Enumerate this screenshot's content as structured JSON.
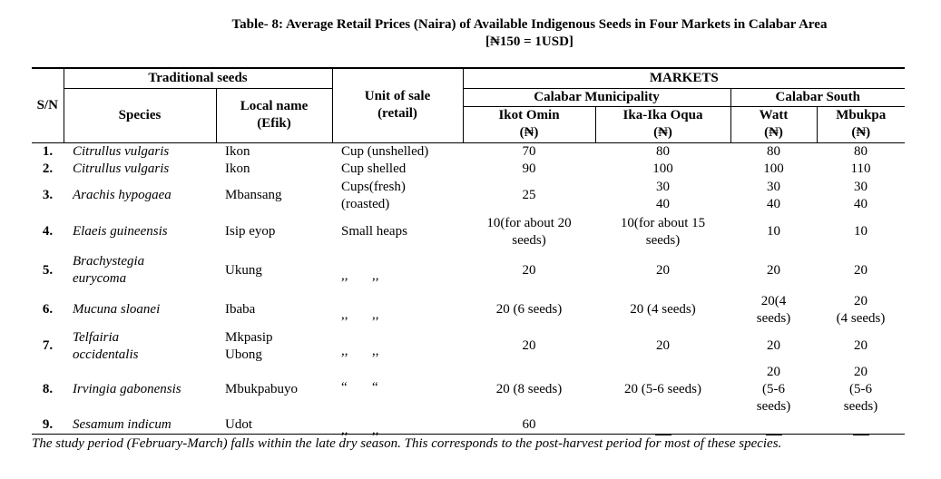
{
  "title": "Table- 8: Average Retail Prices (Naira) of Available Indigenous Seeds in Four Markets in Calabar Area",
  "subtitle": "[₦150 = 1USD]",
  "headers": {
    "sn": "S/N",
    "traditional": "Traditional seeds",
    "species": "Species",
    "local1": "Local name",
    "local2": "(Efik)",
    "unit1": "Unit of sale",
    "unit2": "(retail)",
    "markets": "MARKETS",
    "municipality": "Calabar Municipality",
    "south": "Calabar South",
    "m1": "Ikot Omin",
    "m2": "Ika-Ika Oqua",
    "m3": "Watt",
    "m4": "Mbukpa",
    "currency": "(₦)"
  },
  "rows": [
    {
      "sn": "1.",
      "species": "Citrullus vulgaris",
      "local": "Ikon",
      "unit": "Cup (unshelled)",
      "m1": "70",
      "m2": "80",
      "m3": "80",
      "m4": "80"
    },
    {
      "sn": "2.",
      "species": "Citrullus vulgaris",
      "local": "Ikon",
      "unit": "Cup shelled",
      "m1": "90",
      "m2": "100",
      "m3": "100",
      "m4": "110"
    },
    {
      "sn": "3.",
      "species": "Arachis hypogaea",
      "local": "Mbansang",
      "unit_a": "Cups(fresh)",
      "unit_b": "(roasted)",
      "m1": "25",
      "m2a": "30",
      "m2b": "40",
      "m3a": "30",
      "m3b": "40",
      "m4a": "30",
      "m4b": "40"
    },
    {
      "sn": "4.",
      "species": "Elaeis guineensis",
      "local": "Isip eyop",
      "unit": "Small heaps",
      "m1a": "10(for about 20",
      "m1b": "seeds)",
      "m2a": "10(for about 15",
      "m2b": "seeds)",
      "m3": "10",
      "m4": "10"
    },
    {
      "sn": "5.",
      "species_a": "Brachystegia",
      "species_b": "eurycoma",
      "local": "Ukung",
      "ditto": ",,",
      "m1": "20",
      "m2": "20",
      "m3": "20",
      "m4": "20"
    },
    {
      "sn": "6.",
      "species": "Mucuna sloanei",
      "local": "Ibaba",
      "ditto": ",,",
      "m1": "20 (6 seeds)",
      "m2": "20 (4 seeds)",
      "m3a": "20(4",
      "m3b": "seeds)",
      "m4a": "20",
      "m4b": "(4 seeds)"
    },
    {
      "sn": "7.",
      "species_a": "Telfairia",
      "species_b": "occidentalis",
      "local_a": "Mkpasip",
      "local_b": "Ubong",
      "ditto": ",,",
      "m1": "20",
      "m2": "20",
      "m3": "20",
      "m4": "20"
    },
    {
      "sn": "8.",
      "species": "Irvingia gabonensis",
      "local": "Mbukpabuyo",
      "ditto": "“",
      "m1": "20 (8 seeds)",
      "m2": "20 (5-6 seeds)",
      "m3a": "20",
      "m3b": "(5-6",
      "m3c": "seeds)",
      "m4a": "20",
      "m4b": "(5-6",
      "m4c": "seeds)"
    },
    {
      "sn": "9.",
      "species": "Sesamum indicum",
      "local": "Udot",
      "ditto": ",,",
      "m1": "60"
    }
  ],
  "footnote": "The study period (February-March) falls within the late dry season. This corresponds to the post-harvest period for most of these species."
}
